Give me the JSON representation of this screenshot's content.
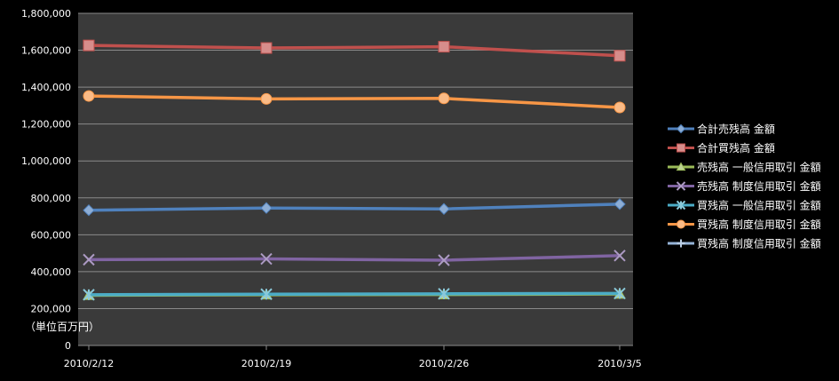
{
  "colors": {
    "page_background": "#000000",
    "plot_background": "#3a3a3a",
    "gridline": "#8a8a8a",
    "axis_text": "#ffffff"
  },
  "chart_data": {
    "type": "line",
    "title": "",
    "xlabel": "",
    "ylabel": "",
    "unit_note": "（単位百万円）",
    "categories": [
      "2010/2/12",
      "2010/2/19",
      "2010/2/26",
      "2010/3/5"
    ],
    "ylim": [
      0,
      1800000
    ],
    "yticks": [
      0,
      200000,
      400000,
      600000,
      800000,
      1000000,
      1200000,
      1400000,
      1600000,
      1800000
    ],
    "ytick_labels": [
      "0",
      "200,000",
      "400,000",
      "600,000",
      "800,000",
      "1,000,000",
      "1,200,000",
      "1,400,000",
      "1,600,000",
      "1,800,000"
    ],
    "grid": true,
    "legend_position": "right",
    "series": [
      {
        "name": "合計売残高 金額",
        "color": "#4f81bd",
        "marker": "diamond",
        "values": [
          733000,
          745000,
          740000,
          766000
        ]
      },
      {
        "name": "合計買残高 金額",
        "color": "#c0504d",
        "marker": "square",
        "values": [
          1626000,
          1612000,
          1619000,
          1570000
        ]
      },
      {
        "name": "売残高 一般信用取引 金額",
        "color": "#9bbb59",
        "marker": "triangle",
        "values": [
          272000,
          275000,
          276000,
          279000
        ]
      },
      {
        "name": "売残高 制度信用取引 金額",
        "color": "#8064a2",
        "marker": "x",
        "values": [
          465000,
          469000,
          462000,
          487000
        ]
      },
      {
        "name": "買残高 一般信用取引 金額",
        "color": "#4bacc6",
        "marker": "star",
        "values": [
          275000,
          278000,
          280000,
          282000
        ]
      },
      {
        "name": "買残高 制度信用取引 金額",
        "color": "#f79646",
        "marker": "circle",
        "values": [
          1352000,
          1336000,
          1339000,
          1290000
        ]
      },
      {
        "name": "買残高 制度信用取引 金額",
        "color": "#95b3d7",
        "marker": "plus",
        "values": [
          null,
          null,
          null,
          null
        ]
      }
    ]
  }
}
